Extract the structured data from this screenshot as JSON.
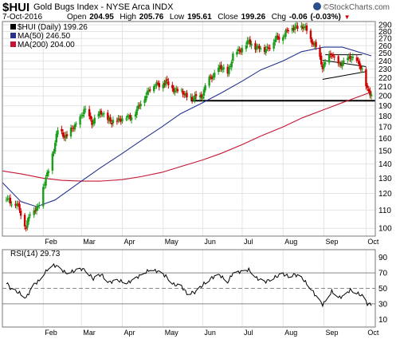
{
  "header": {
    "symbol": "$HUI",
    "name": "Gold Bugs Index - NYSE Arca INDX",
    "date": "7-Oct-2016",
    "open_label": "Open",
    "open": "204.95",
    "high_label": "High",
    "high": "205.76",
    "low_label": "Low",
    "low": "195.61",
    "close_label": "Close",
    "close": "199.26",
    "chg_label": "Chg",
    "chg": "-0.06 (-0.03%)",
    "chg_arrow": "▼",
    "brand": "©StockCharts.com"
  },
  "colors": {
    "up_candle": "#1a9e1a",
    "down_candle": "#d00000",
    "ma50": "#25328f",
    "ma200": "#c41535",
    "rsi_line": "#000000",
    "grid": "#e4e4e4",
    "trendline": "#000000",
    "chg_negative": "#d00000"
  },
  "chart_data": [
    {
      "type": "candlestick",
      "legend": [
        {
          "label": "$HUI (Daily) 199.26",
          "color": "#000000"
        },
        {
          "label": "MA(50) 246.50",
          "color": "#25328f"
        },
        {
          "label": "MA(200) 204.00",
          "color": "#c41535"
        }
      ],
      "scale": "log",
      "y_ticks": [
        100,
        110,
        120,
        130,
        140,
        150,
        160,
        170,
        180,
        190,
        200,
        210,
        220,
        230,
        240,
        250,
        260,
        270,
        280,
        290
      ],
      "y_range": [
        96,
        295
      ],
      "x_start": "2016-01-01",
      "x_end": "2016-10-10",
      "x_ticks": [
        {
          "date": "2016-02-01",
          "label": "Feb"
        },
        {
          "date": "2016-03-01",
          "label": "Mar"
        },
        {
          "date": "2016-04-01",
          "label": "Apr"
        },
        {
          "date": "2016-05-02",
          "label": "May"
        },
        {
          "date": "2016-06-01",
          "label": "Jun"
        },
        {
          "date": "2016-07-01",
          "label": "Jul"
        },
        {
          "date": "2016-08-01",
          "label": "Aug"
        },
        {
          "date": "2016-09-01",
          "label": "Sep"
        },
        {
          "date": "2016-10-03",
          "label": "Oct"
        }
      ],
      "price_path": [
        [
          "2016-01-04",
          117
        ],
        [
          "2016-01-12",
          113
        ],
        [
          "2016-01-19",
          101
        ],
        [
          "2016-01-22",
          108
        ],
        [
          "2016-01-28",
          112
        ],
        [
          "2016-02-04",
          132
        ],
        [
          "2016-02-09",
          152
        ],
        [
          "2016-02-12",
          166
        ],
        [
          "2016-02-19",
          162
        ],
        [
          "2016-02-26",
          172
        ],
        [
          "2016-03-03",
          185
        ],
        [
          "2016-03-09",
          175
        ],
        [
          "2016-03-17",
          183
        ],
        [
          "2016-03-24",
          173
        ],
        [
          "2016-03-30",
          178
        ],
        [
          "2016-04-06",
          178
        ],
        [
          "2016-04-13",
          187
        ],
        [
          "2016-04-21",
          207
        ],
        [
          "2016-04-28",
          213
        ],
        [
          "2016-05-04",
          214
        ],
        [
          "2016-05-11",
          207
        ],
        [
          "2016-05-17",
          203
        ],
        [
          "2016-05-24",
          196
        ],
        [
          "2016-05-31",
          200
        ],
        [
          "2016-06-07",
          220
        ],
        [
          "2016-06-14",
          231
        ],
        [
          "2016-06-20",
          226
        ],
        [
          "2016-06-24",
          246
        ],
        [
          "2016-06-30",
          256
        ],
        [
          "2016-07-06",
          264
        ],
        [
          "2016-07-12",
          259
        ],
        [
          "2016-07-18",
          254
        ],
        [
          "2016-07-25",
          266
        ],
        [
          "2016-08-01",
          276
        ],
        [
          "2016-08-05",
          282
        ],
        [
          "2016-08-11",
          289
        ],
        [
          "2016-08-15",
          286
        ],
        [
          "2016-08-19",
          283
        ],
        [
          "2016-08-22",
          269
        ],
        [
          "2016-08-26",
          256
        ],
        [
          "2016-08-31",
          234
        ],
        [
          "2016-09-02",
          238
        ],
        [
          "2016-09-07",
          248
        ],
        [
          "2016-09-12",
          236
        ],
        [
          "2016-09-16",
          236
        ],
        [
          "2016-09-21",
          247
        ],
        [
          "2016-09-26",
          238
        ],
        [
          "2016-09-30",
          230
        ],
        [
          "2016-10-04",
          206
        ],
        [
          "2016-10-07",
          199.26
        ]
      ],
      "ma50": [
        [
          "2016-01-01",
          127
        ],
        [
          "2016-01-15",
          115
        ],
        [
          "2016-01-27",
          112
        ],
        [
          "2016-02-10",
          116
        ],
        [
          "2016-03-01",
          128
        ],
        [
          "2016-03-15",
          137
        ],
        [
          "2016-04-01",
          148
        ],
        [
          "2016-04-15",
          158
        ],
        [
          "2016-05-01",
          170
        ],
        [
          "2016-05-15",
          182
        ],
        [
          "2016-06-01",
          193
        ],
        [
          "2016-06-15",
          203
        ],
        [
          "2016-07-01",
          216
        ],
        [
          "2016-07-15",
          229
        ],
        [
          "2016-08-01",
          240
        ],
        [
          "2016-08-15",
          252
        ],
        [
          "2016-09-01",
          258
        ],
        [
          "2016-09-15",
          258
        ],
        [
          "2016-10-07",
          246.5
        ]
      ],
      "ma200": [
        [
          "2016-01-01",
          135
        ],
        [
          "2016-01-15",
          133
        ],
        [
          "2016-02-01",
          130
        ],
        [
          "2016-02-15",
          128.5
        ],
        [
          "2016-03-01",
          128
        ],
        [
          "2016-03-15",
          128
        ],
        [
          "2016-04-01",
          129
        ],
        [
          "2016-04-15",
          131
        ],
        [
          "2016-05-01",
          134
        ],
        [
          "2016-05-15",
          138
        ],
        [
          "2016-06-01",
          143
        ],
        [
          "2016-06-15",
          148
        ],
        [
          "2016-07-01",
          155
        ],
        [
          "2016-07-15",
          162
        ],
        [
          "2016-08-01",
          170
        ],
        [
          "2016-08-15",
          178
        ],
        [
          "2016-09-01",
          186
        ],
        [
          "2016-09-15",
          193
        ],
        [
          "2016-10-07",
          204
        ]
      ],
      "trendlines": [
        [
          [
            "2016-05-23",
            195
          ],
          [
            "2016-10-10",
            195
          ]
        ],
        [
          [
            "2016-08-31",
            218
          ],
          [
            "2016-10-03",
            227
          ]
        ],
        [
          [
            "2016-08-31",
            241
          ],
          [
            "2016-10-03",
            233
          ]
        ],
        [
          [
            "2016-09-02",
            248
          ],
          [
            "2016-09-30",
            248
          ]
        ]
      ]
    },
    {
      "type": "line",
      "legend": [
        {
          "label": "RSI(14) 29.73",
          "color": "#000000"
        }
      ],
      "y_ticks": [
        10,
        30,
        50,
        70,
        90
      ],
      "y_range": [
        0,
        100
      ],
      "reference_lines": [
        30,
        50,
        70
      ],
      "x_ticks": [
        "Feb",
        "Mar",
        "Apr",
        "May",
        "Jun",
        "Jul",
        "Aug",
        "Sep",
        "Oct"
      ],
      "rsi": [
        [
          "2016-01-04",
          58
        ],
        [
          "2016-01-08",
          48
        ],
        [
          "2016-01-14",
          44
        ],
        [
          "2016-01-19",
          38
        ],
        [
          "2016-01-25",
          55
        ],
        [
          "2016-01-29",
          60
        ],
        [
          "2016-02-04",
          74
        ],
        [
          "2016-02-09",
          80
        ],
        [
          "2016-02-12",
          78
        ],
        [
          "2016-02-18",
          70
        ],
        [
          "2016-02-24",
          72
        ],
        [
          "2016-03-01",
          75
        ],
        [
          "2016-03-04",
          74
        ],
        [
          "2016-03-10",
          62
        ],
        [
          "2016-03-16",
          68
        ],
        [
          "2016-03-22",
          58
        ],
        [
          "2016-03-29",
          60
        ],
        [
          "2016-04-05",
          57
        ],
        [
          "2016-04-12",
          64
        ],
        [
          "2016-04-18",
          70
        ],
        [
          "2016-04-22",
          74
        ],
        [
          "2016-04-28",
          72
        ],
        [
          "2016-05-04",
          66
        ],
        [
          "2016-05-10",
          55
        ],
        [
          "2016-05-16",
          52
        ],
        [
          "2016-05-20",
          44
        ],
        [
          "2016-05-27",
          45
        ],
        [
          "2016-06-02",
          56
        ],
        [
          "2016-06-08",
          64
        ],
        [
          "2016-06-14",
          67
        ],
        [
          "2016-06-20",
          58
        ],
        [
          "2016-06-24",
          70
        ],
        [
          "2016-07-01",
          72
        ],
        [
          "2016-07-06",
          74
        ],
        [
          "2016-07-12",
          63
        ],
        [
          "2016-07-18",
          58
        ],
        [
          "2016-07-25",
          64
        ],
        [
          "2016-08-01",
          68
        ],
        [
          "2016-08-05",
          66
        ],
        [
          "2016-08-10",
          68
        ],
        [
          "2016-08-16",
          62
        ],
        [
          "2016-08-22",
          50
        ],
        [
          "2016-08-26",
          40
        ],
        [
          "2016-08-31",
          29
        ],
        [
          "2016-09-02",
          33
        ],
        [
          "2016-09-07",
          46
        ],
        [
          "2016-09-12",
          38
        ],
        [
          "2016-09-16",
          40
        ],
        [
          "2016-09-21",
          48
        ],
        [
          "2016-09-26",
          44
        ],
        [
          "2016-09-30",
          40
        ],
        [
          "2016-10-04",
          30
        ],
        [
          "2016-10-07",
          29.73
        ]
      ]
    }
  ]
}
